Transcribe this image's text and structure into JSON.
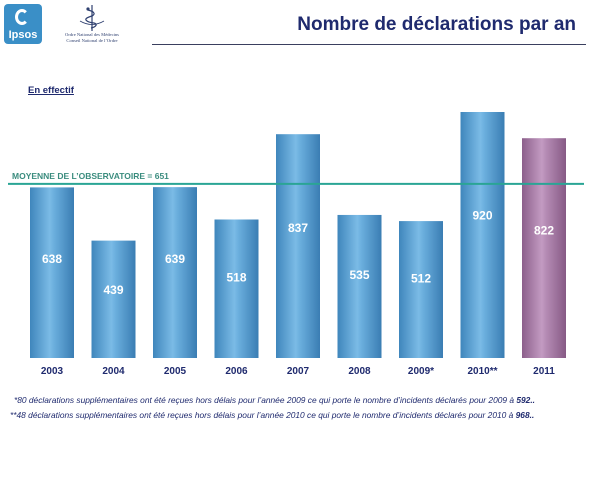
{
  "header": {
    "logo_text": "Ipsos",
    "order_line1": "Ordre National des Médecins",
    "order_line2": "Conseil National de l’Ordre",
    "title": "Nombre de déclarations par an"
  },
  "subtitle": "En effectif",
  "colors": {
    "bar": "#5aa3d6",
    "bar_highlight": "#a77ca6",
    "mean_line": "#2aa595",
    "title": "#1f2a6e",
    "mean_label": "#3a8c7e"
  },
  "chart_data": {
    "type": "bar",
    "title": "Nombre de déclarations par an",
    "categories": [
      "2003",
      "2004",
      "2005",
      "2006",
      "2007",
      "2008",
      "2009*",
      "2010**",
      "2011"
    ],
    "values": [
      638,
      439,
      639,
      518,
      837,
      535,
      512,
      920,
      822
    ],
    "highlight_index": 8,
    "mean": {
      "label": "MOYENNE DE L’OBSERVATOIRE = 651",
      "value": 651
    },
    "ylim": [
      0,
      920
    ],
    "xlabel": "",
    "ylabel": "",
    "grid": false
  },
  "footnotes": [
    {
      "text": "*80 déclarations supplémentaires ont été reçues hors délais pour l’année 2009 ce qui porte le nombre d’incidents déclarés pour 2009 à ",
      "value": "592.."
    },
    {
      "text": "**48 déclarations supplémentaires ont été reçues hors délais pour l’année 2010 ce qui porte le nombre d’incidents déclarés pour 2010 à ",
      "value": "968.."
    }
  ]
}
